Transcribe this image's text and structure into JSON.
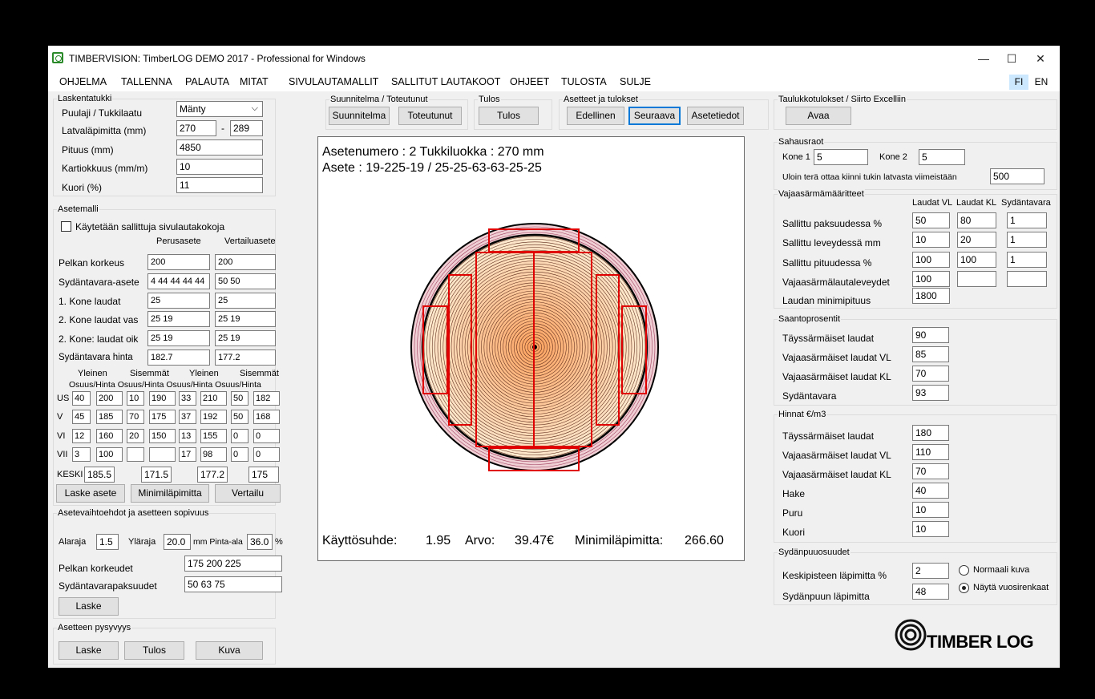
{
  "window": {
    "title": "TIMBERVISION: TimberLOG DEMO 2017 - Professional for Windows",
    "minimize": "—",
    "maximize": "☐",
    "close": "✕"
  },
  "menu": [
    "OHJELMA",
    "TALLENNA",
    "PALAUTA",
    "MITAT",
    "SIVULAUTAMALLIT",
    "SALLITUT LAUTAKOOT",
    "OHJEET",
    "TULOSTA",
    "SULJE"
  ],
  "lang": {
    "fi": "FI",
    "en": "EN"
  },
  "laskentatukki": {
    "title": "Laskentatukki",
    "puulaji_label": "Puulaji / Tukkilaatu",
    "puulaji_value": "Mänty",
    "latva_label": "Latvaläpimitta (mm)",
    "latva_min": "270",
    "dash": "-",
    "latva_max": "289",
    "pituus_label": "Pituus (mm)",
    "pituus_value": "4850",
    "kartio_label": "Kartiokkuus (mm/m)",
    "kartio_value": "10",
    "kuori_label": "Kuori (%)",
    "kuori_value": "11"
  },
  "asetemalli": {
    "title": "Asetemalli",
    "checkbox_label": "Käytetään sallittuja sivulautakokoja",
    "col1": "Perusasete",
    "col2": "Vertailuasete",
    "rows": [
      {
        "label": "Pelkan korkeus",
        "a": "200",
        "b": "200"
      },
      {
        "label": "Sydäntavara-asete",
        "a": "4 44 44 44 44",
        "b": "50 50"
      },
      {
        "label": "1. Kone laudat",
        "a": "25",
        "b": "25"
      },
      {
        "label": "2. Kone laudat vas",
        "a": "25 19",
        "b": "25 19"
      },
      {
        "label": "2. Kone: laudat oik",
        "a": "25 19",
        "b": "25 19"
      },
      {
        "label": "Sydäntavara hinta",
        "a": "182.7",
        "b": "177.2"
      }
    ],
    "h_yleinen1": "Yleinen",
    "h_sisemmat1": "Sisemmät",
    "h_yleinen2": "Yleinen",
    "h_sisemmat2": "Sisemmät",
    "h_osuus": "Osuus/Hinta Osuus/Hinta Osuus/Hinta Osuus/Hinta",
    "grid": [
      [
        "US",
        "40",
        "200",
        "10",
        "190",
        "33",
        "210",
        "50",
        "182"
      ],
      [
        "V",
        "45",
        "185",
        "70",
        "175",
        "37",
        "192",
        "50",
        "168"
      ],
      [
        "VI",
        "12",
        "160",
        "20",
        "150",
        "13",
        "155",
        "0",
        "0"
      ],
      [
        "VII",
        "3",
        "100",
        "",
        "",
        "17",
        "98",
        "0",
        "0"
      ]
    ],
    "keski_label": "KESKI",
    "keski": [
      "185.5",
      "171.5",
      "177.2",
      "175"
    ],
    "btn_laske": "Laske asete",
    "btn_mini": "Minimiläpimitta",
    "btn_vertailu": "Vertailu"
  },
  "vaihtoehdot": {
    "title": "Asetevaihtoehdot ja asetteen sopivuus",
    "alaraja_label": "Alaraja",
    "alaraja": "1.5",
    "ylaraja_label": "Yläraja",
    "ylaraja": "20.0",
    "mm_label": "mm Pinta-ala",
    "pinta": "36.0",
    "pct": "%",
    "pelkka_label": "Pelkan korkeudet",
    "pelkka": "175 200 225",
    "sydan_label": "Sydäntavarapaksuudet",
    "sydan": "50 63 75",
    "btn_laske": "Laske"
  },
  "pysyvyys": {
    "title": "Asetteen pysyvyys",
    "btn_laske": "Laske",
    "btn_tulos": "Tulos",
    "btn_kuva": "Kuva"
  },
  "toolbar": {
    "g1": "Suunnitelma / Toteutunut",
    "suunnitelma": "Suunnitelma",
    "toteutunut": "Toteutunut",
    "g2": "Tulos",
    "tulos": "Tulos",
    "g3": "Asetteet ja tulokset",
    "edellinen": "Edellinen",
    "seuraava": "Seuraava",
    "asetetiedot": "Asetetiedot"
  },
  "drawing": {
    "line1": "Asetenumero : 2  Tukkiluokka : 270 mm",
    "line2": "Asete :   19-225-19 / 25-25-63-63-25-25",
    "kayttosuhde_label": "Käyttösuhde:",
    "kayttosuhde": "1.95",
    "arvo_label": "Arvo:",
    "arvo": "39.47€",
    "mini_label": "Minimiläpimitta:",
    "mini": "266.60"
  },
  "taulukko": {
    "title": "Taulukkotulokset / Siirto Excelliin",
    "avaa": "Avaa"
  },
  "sahausraot": {
    "title": "Sahausraot",
    "kone1_label": "Kone 1",
    "kone1": "5",
    "kone2_label": "Kone 2",
    "kone2": "5",
    "ulo_label": "Uloin terä ottaa kiinni tukin latvasta viimeistään",
    "ulo": "500"
  },
  "vajaa": {
    "title": "Vajaasärmämääritteet",
    "c1": "Laudat VL",
    "c2": "Laudat KL",
    "c3": "Sydäntavara",
    "rows": [
      {
        "label": "Sallittu paksuudessa %",
        "v": [
          "50",
          "80",
          "1"
        ]
      },
      {
        "label": "Sallittu leveydessä mm",
        "v": [
          "10",
          "20",
          "1"
        ]
      },
      {
        "label": "Sallittu pituudessa %",
        "v": [
          "100",
          "100",
          "1"
        ]
      },
      {
        "label": "Vajaasärmälautaleveydet",
        "v": [
          "100",
          "",
          ""
        ]
      }
    ],
    "min_label": "Laudan minimipituus",
    "min": "1800"
  },
  "saanto": {
    "title": "Saantoprosentit",
    "rows": [
      {
        "label": "Täyssärmäiset laudat",
        "v": "90"
      },
      {
        "label": "Vajaasärmäiset laudat VL",
        "v": "85"
      },
      {
        "label": "Vajaasärmäiset laudat KL",
        "v": "70"
      },
      {
        "label": "Sydäntavara",
        "v": "93"
      }
    ]
  },
  "hinnat": {
    "title": "Hinnat €/m3",
    "rows": [
      {
        "label": "Täyssärmäiset laudat",
        "v": "180"
      },
      {
        "label": "Vajaasärmäiset laudat VL",
        "v": "110"
      },
      {
        "label": "Vajaasärmäiset laudat KL",
        "v": "70"
      },
      {
        "label": "Hake",
        "v": "40"
      },
      {
        "label": "Puru",
        "v": "10"
      },
      {
        "label": "Kuori",
        "v": "10"
      }
    ]
  },
  "sydanpuu": {
    "title": "Sydänpuuosuudet",
    "kp_label": "Keskipisteen läpimitta %",
    "kp": "2",
    "sp_label": "Sydänpuun läpimitta",
    "sp": "48",
    "r1": "Normaali kuva",
    "r2": "Näytä vuosirenkaat"
  },
  "logo": {
    "text": "TIMBER LOG"
  },
  "icons": {
    "app": "timberlog-app-icon",
    "logo": "timberlog-logo-icon",
    "dropdown": "chevron-down-icon"
  }
}
